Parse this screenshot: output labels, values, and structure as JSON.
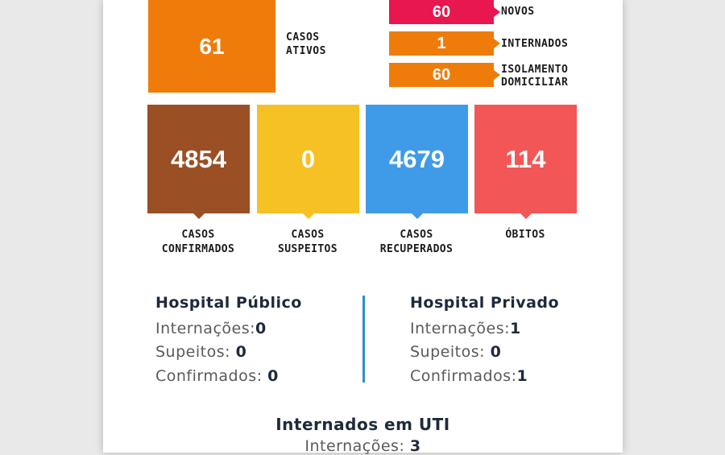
{
  "active": {
    "value": "61",
    "label_line1": "CASOS",
    "label_line2": "ATIVOS"
  },
  "breakdown": [
    {
      "value": "60",
      "label_line1": "NOVOS",
      "label_line2": "",
      "color": "#e8174f"
    },
    {
      "value": "1",
      "label_line1": "INTERNADOS",
      "label_line2": "",
      "color": "#ef7c0a"
    },
    {
      "value": "60",
      "label_line1": "ISOLAMENTO",
      "label_line2": "DOMICILIAR",
      "color": "#ef7c0a"
    }
  ],
  "stats": [
    {
      "value": "4854",
      "label_line1": "CASOS",
      "label_line2": "CONFIRMADOS",
      "color": "#9a4f24"
    },
    {
      "value": "0",
      "label_line1": "CASOS",
      "label_line2": "SUSPEITOS",
      "color": "#f6c125"
    },
    {
      "value": "4679",
      "label_line1": "CASOS",
      "label_line2": "RECUPERADOS",
      "color": "#3f9be8"
    },
    {
      "value": "114",
      "label_line1": "ÓBITOS",
      "label_line2": "",
      "color": "#f25656"
    }
  ],
  "hospital_publico": {
    "title": "Hospital Público",
    "rows": [
      {
        "label": "Internações:",
        "value": "0"
      },
      {
        "label": "Supeitos:",
        "value": "0"
      },
      {
        "label": "Confirmados:",
        "value": "0"
      }
    ]
  },
  "hospital_privado": {
    "title": "Hospital Privado",
    "rows": [
      {
        "label": "Internações:",
        "value": "1"
      },
      {
        "label": "Supeitos:",
        "value": "0"
      },
      {
        "label": "Confirmados:",
        "value": "1"
      }
    ]
  },
  "uti": {
    "title": "Internados em UTI",
    "label": "Internações:",
    "value": "3"
  }
}
